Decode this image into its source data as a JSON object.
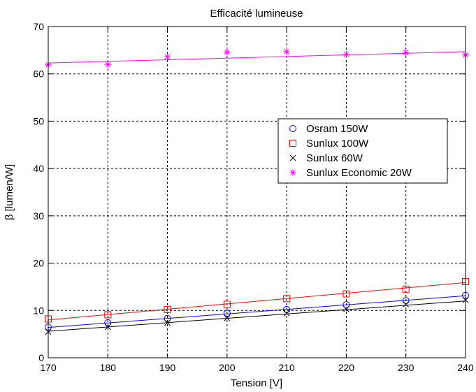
{
  "chart_data": {
    "type": "scatter",
    "title": "Efficacité lumineuse",
    "xlabel": "Tension  [V]",
    "ylabel": "β  [lumen/W]",
    "xlim": [
      170,
      240
    ],
    "ylim": [
      0,
      70
    ],
    "xticks": [
      170,
      180,
      190,
      200,
      210,
      220,
      230,
      240
    ],
    "yticks": [
      0,
      10,
      20,
      30,
      40,
      50,
      60,
      70
    ],
    "grid": true,
    "legend_position": "center-right",
    "x": [
      170,
      180,
      190,
      200,
      210,
      220,
      230,
      240
    ],
    "series": [
      {
        "name": "Osram 150W",
        "marker": "circle",
        "color": "#0000ff",
        "values": [
          6.5,
          7.4,
          8.3,
          9.4,
          10.2,
          11.2,
          12.1,
          13.2
        ],
        "fit": [
          6.4,
          13.1
        ]
      },
      {
        "name": "Sunlux 100W",
        "marker": "square",
        "color": "#ff0000",
        "values": [
          8.2,
          9.1,
          10.2,
          11.3,
          12.5,
          13.5,
          14.5,
          16.1
        ],
        "fit": [
          8.0,
          15.9
        ]
      },
      {
        "name": "Sunlux 60W",
        "marker": "x",
        "color": "#000000",
        "values": [
          5.5,
          6.5,
          7.4,
          8.4,
          9.4,
          10.3,
          11.3,
          12.2
        ],
        "fit": [
          5.6,
          12.0
        ]
      },
      {
        "name": "Sunlux Economic 20W",
        "marker": "star",
        "color": "#ff00ff",
        "values": [
          61.9,
          62.0,
          63.6,
          64.6,
          64.7,
          64.1,
          64.5,
          64.0
        ],
        "fit": [
          62.3,
          64.7
        ]
      }
    ]
  }
}
